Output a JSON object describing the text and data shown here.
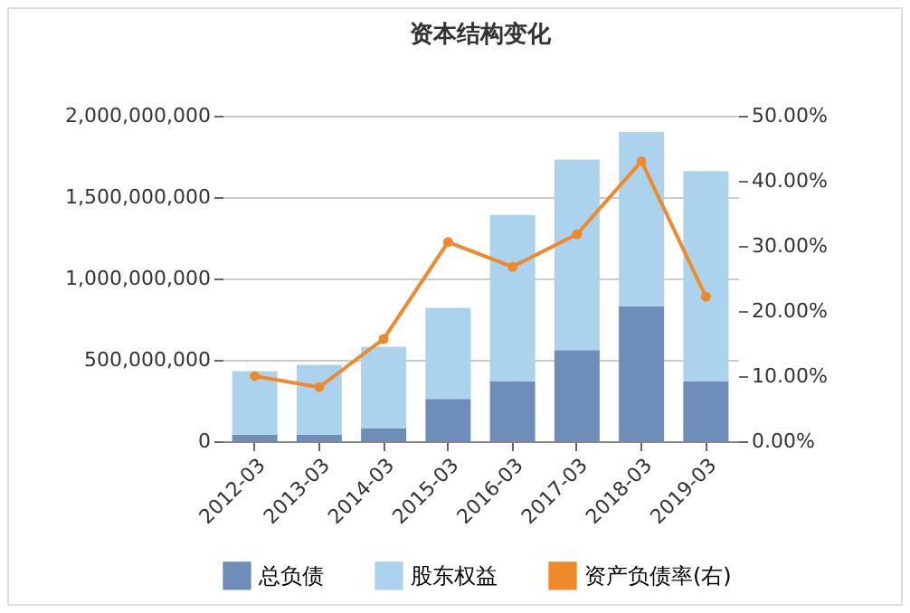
{
  "chart_data": {
    "type": "bar",
    "title": "资本结构变化",
    "stacked": true,
    "categories": [
      "2012-03",
      "2013-03",
      "2014-03",
      "2015-03",
      "2016-03",
      "2017-03",
      "2018-03",
      "2019-03"
    ],
    "series": [
      {
        "name": "总负债",
        "type": "bar",
        "color": "#6f8db9",
        "values": [
          40000000,
          40000000,
          80000000,
          260000000,
          370000000,
          560000000,
          830000000,
          370000000
        ]
      },
      {
        "name": "股东权益",
        "type": "bar",
        "color": "#acd3ee",
        "values": [
          390000000,
          430000000,
          500000000,
          560000000,
          1020000000,
          1170000000,
          1070000000,
          1290000000
        ]
      },
      {
        "name": "资产负债率(右)",
        "type": "line",
        "axis": "y2",
        "color": "#f0892a",
        "marker": "circle",
        "values": [
          10.0,
          8.3,
          15.7,
          30.6,
          26.8,
          31.8,
          43.0,
          22.2
        ]
      }
    ],
    "ylim": [
      0,
      2000000000
    ],
    "yticks": [
      0,
      {
        "value": 500000000,
        "label": "500,000,000"
      },
      {
        "value": 1000000000,
        "label": "1,000,000,000"
      },
      {
        "value": 1500000000,
        "label": "1,500,000,000"
      },
      {
        "value": 2000000000,
        "label": "2,000,000,000"
      }
    ],
    "y2lim": [
      0,
      50
    ],
    "y2ticks": [
      {
        "value": 0,
        "label": "0.00%"
      },
      {
        "value": 10,
        "label": "10.00%"
      },
      {
        "value": 20,
        "label": "20.00%"
      },
      {
        "value": 30,
        "label": "30.00%"
      },
      {
        "value": 40,
        "label": "40.00%"
      },
      {
        "value": 50,
        "label": "50.00%"
      }
    ],
    "grid": "y",
    "legend": "bottom"
  }
}
